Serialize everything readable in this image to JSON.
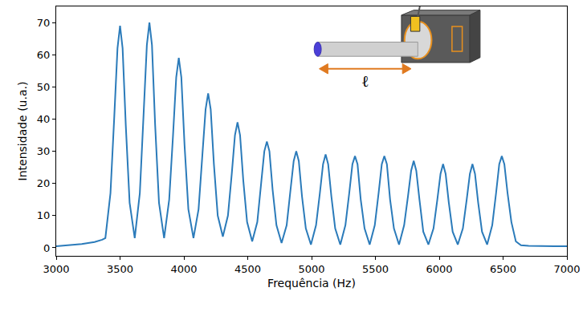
{
  "chart_data": {
    "type": "line",
    "x_label": "Frequência (Hz)",
    "y_label": "Intensidade (u.a.)",
    "annotations": [
      "ℓ"
    ],
    "color": "#2b7bba",
    "grid": false,
    "xlim": [
      3000,
      7000
    ],
    "ylim": [
      -2.5,
      75
    ],
    "xticks": [
      3000,
      3500,
      4000,
      4500,
      5000,
      5500,
      6000,
      6500,
      7000
    ],
    "yticks": [
      0,
      10,
      20,
      30,
      40,
      50,
      60,
      70
    ],
    "x": [
      3000,
      3100,
      3200,
      3300,
      3360,
      3385,
      3425,
      3455,
      3480,
      3500,
      3520,
      3545,
      3575,
      3615,
      3655,
      3685,
      3710,
      3730,
      3750,
      3775,
      3805,
      3845,
      3885,
      3915,
      3940,
      3960,
      3980,
      4005,
      4035,
      4075,
      4115,
      4145,
      4170,
      4190,
      4210,
      4235,
      4265,
      4305,
      4345,
      4375,
      4400,
      4420,
      4440,
      4465,
      4495,
      4535,
      4575,
      4605,
      4630,
      4650,
      4670,
      4695,
      4725,
      4765,
      4805,
      4835,
      4860,
      4880,
      4900,
      4925,
      4955,
      4995,
      5035,
      5065,
      5090,
      5110,
      5130,
      5155,
      5185,
      5225,
      5265,
      5295,
      5320,
      5340,
      5360,
      5385,
      5415,
      5455,
      5495,
      5525,
      5550,
      5570,
      5590,
      5615,
      5645,
      5685,
      5725,
      5755,
      5780,
      5800,
      5820,
      5845,
      5875,
      5915,
      5955,
      5985,
      6010,
      6030,
      6050,
      6075,
      6105,
      6145,
      6185,
      6215,
      6240,
      6260,
      6280,
      6305,
      6335,
      6375,
      6415,
      6445,
      6470,
      6490,
      6510,
      6535,
      6565,
      6600,
      6640,
      6700,
      6800,
      6900,
      7000
    ],
    "values": [
      0.5,
      0.8,
      1.2,
      1.8,
      2.5,
      3,
      17,
      41,
      62,
      69,
      62,
      38,
      14,
      3,
      17,
      42,
      63,
      70,
      63,
      38,
      14,
      3,
      15,
      35,
      53,
      59,
      53,
      32,
      12,
      3,
      12,
      29,
      43,
      48,
      43,
      26,
      10,
      3.5,
      10,
      23,
      35,
      39,
      35,
      21,
      8,
      2,
      8,
      20,
      30,
      33,
      30,
      18,
      7,
      1.5,
      7,
      18,
      27,
      30,
      27,
      16,
      6,
      1,
      7,
      17,
      26,
      29,
      26,
      16,
      6,
      1,
      7,
      17,
      26,
      28.5,
      26,
      15,
      6,
      1,
      7,
      17,
      26,
      28.5,
      26,
      15,
      6,
      1,
      7,
      16,
      24,
      27,
      24,
      15,
      5,
      1,
      6,
      15,
      23,
      26,
      23,
      14,
      5,
      1,
      6,
      15,
      23,
      26,
      23,
      14,
      5,
      1,
      7,
      17,
      26,
      28.5,
      26,
      17,
      8,
      2,
      0.8,
      0.6,
      0.5,
      0.5,
      0.5
    ]
  }
}
